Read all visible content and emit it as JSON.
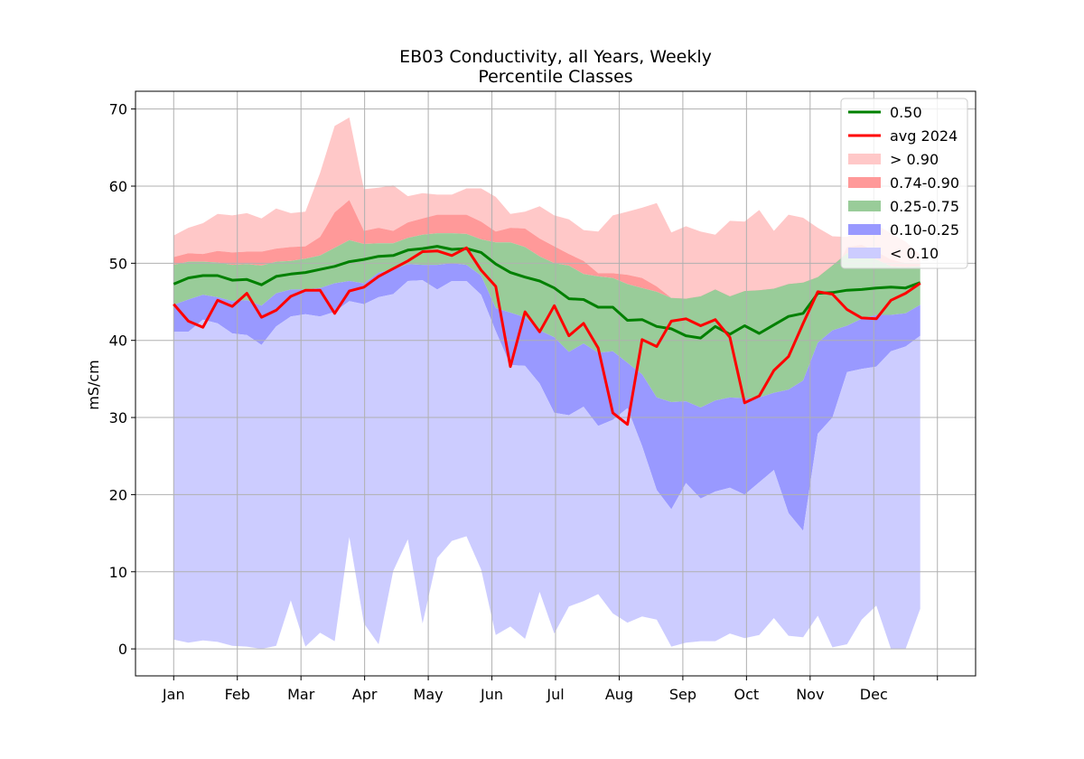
{
  "chart_data": {
    "type": "area",
    "title": "EB03 Conductivity, all Years, Weekly",
    "subtitle": "Percentile Classes",
    "xlabel": "",
    "ylabel": "mS/cm",
    "ylim": [
      -3.5,
      72.3
    ],
    "yticks": [
      0,
      10,
      20,
      30,
      40,
      50,
      60,
      70
    ],
    "xlim": [
      -0.6,
      12.6
    ],
    "x_tick_labels": [
      "Jan",
      "Feb",
      "Mar",
      "Apr",
      "May",
      "Jun",
      "Jul",
      "Aug",
      "Sep",
      "Oct",
      "Nov",
      "Dec",
      ""
    ],
    "grid": true,
    "legend_position": "top-right",
    "colors": {
      "median": "#008000",
      "avg_2024": "#ff0000",
      "above_90": "#ffc8c8",
      "p74_90": "#ff9999",
      "p25_75": "#99cc99",
      "p10_25": "#9999ff",
      "below_10": "#ccccff"
    },
    "legend": [
      {
        "label": "0.50",
        "kind": "line",
        "color_key": "median"
      },
      {
        "label": "avg 2024",
        "kind": "line",
        "color_key": "avg_2024"
      },
      {
        "label": "> 0.90",
        "kind": "patch",
        "color_key": "above_90"
      },
      {
        "label": "0.74-0.90",
        "kind": "patch",
        "color_key": "p74_90"
      },
      {
        "label": "0.25-0.75",
        "kind": "patch",
        "color_key": "p25_75"
      },
      {
        "label": "0.10-0.25",
        "kind": "patch",
        "color_key": "p10_25"
      },
      {
        "label": "< 0.10",
        "kind": "patch",
        "color_key": "below_10"
      }
    ],
    "weeks_x": [
      0,
      0.23,
      0.46,
      0.69,
      0.92,
      1.15,
      1.38,
      1.61,
      1.84,
      2.07,
      2.3,
      2.53,
      2.76,
      2.99,
      3.22,
      3.45,
      3.68,
      3.91,
      4.14,
      4.37,
      4.6,
      4.83,
      5.06,
      5.29,
      5.52,
      5.75,
      5.98,
      6.21,
      6.44,
      6.67,
      6.9,
      7.13,
      7.36,
      7.59,
      7.82,
      8.05,
      8.28,
      8.51,
      8.74,
      8.97,
      9.2,
      9.43,
      9.66,
      9.89,
      10.12,
      10.35,
      10.58,
      10.81,
      11.04,
      11.27,
      11.5,
      11.73
    ],
    "series": [
      {
        "name": "min",
        "values": [
          1.2,
          0.8,
          1.1,
          0.9,
          0.4,
          0.3,
          0.0,
          0.4,
          6.3,
          0.3,
          2.1,
          1.0,
          14.5,
          3.3,
          0.6,
          10.1,
          14.2,
          3.3,
          11.8,
          14.0,
          14.6,
          10.3,
          1.8,
          2.9,
          1.3,
          7.4,
          2.0,
          5.5,
          6.2,
          7.1,
          4.6,
          3.4,
          4.2,
          3.8,
          0.3,
          0.8,
          1.0,
          1.0,
          2.0,
          1.4,
          1.8,
          4.0,
          1.7,
          1.5,
          4.3,
          0.2,
          0.6,
          3.8,
          5.6,
          0.0,
          0.0,
          5.2
        ]
      },
      {
        "name": "p10",
        "values": [
          41.1,
          41.1,
          42.7,
          42.2,
          40.9,
          40.7,
          39.4,
          41.8,
          43.1,
          43.4,
          43.1,
          43.7,
          45.1,
          44.7,
          45.6,
          46.0,
          47.7,
          47.8,
          46.6,
          47.7,
          47.7,
          45.9,
          41.2,
          36.8,
          36.7,
          34.4,
          30.6,
          30.3,
          31.4,
          28.9,
          29.7,
          31.2,
          26.3,
          20.6,
          18.1,
          21.5,
          19.5,
          20.4,
          20.9,
          20.0,
          21.6,
          23.2,
          17.6,
          15.3,
          27.9,
          30.0,
          35.9,
          36.3,
          36.6,
          38.6,
          39.2,
          40.6
        ]
      },
      {
        "name": "p25",
        "values": [
          44.6,
          45.3,
          45.9,
          45.6,
          45.1,
          45.2,
          44.5,
          46.1,
          46.6,
          46.6,
          46.8,
          47.4,
          47.7,
          47.4,
          48.8,
          49.2,
          49.9,
          49.8,
          49.8,
          50.0,
          49.8,
          48.4,
          44.2,
          43.6,
          43.0,
          41.3,
          40.4,
          38.5,
          39.6,
          38.4,
          38.6,
          37.1,
          35.6,
          32.6,
          32.0,
          32.1,
          31.3,
          32.2,
          32.6,
          32.5,
          32.6,
          33.2,
          33.6,
          34.8,
          39.7,
          41.3,
          41.9,
          42.8,
          43.3,
          43.3,
          43.5,
          44.6
        ]
      },
      {
        "name": "p75",
        "values": [
          49.8,
          50.2,
          50.2,
          50.1,
          49.8,
          49.9,
          49.7,
          50.2,
          50.3,
          50.6,
          51.0,
          52.0,
          53.0,
          52.5,
          52.6,
          52.6,
          53.3,
          53.7,
          53.9,
          53.9,
          53.8,
          53.1,
          52.7,
          52.7,
          52.1,
          50.9,
          50.0,
          49.7,
          48.6,
          48.3,
          48.1,
          47.3,
          46.8,
          46.3,
          45.5,
          45.4,
          45.7,
          46.6,
          45.7,
          46.4,
          46.5,
          46.7,
          47.3,
          47.5,
          48.2,
          49.7,
          51.3,
          51.6,
          50.5,
          49.6,
          49.5,
          49.6
        ]
      },
      {
        "name": "p90",
        "values": [
          50.8,
          51.3,
          51.2,
          51.6,
          51.4,
          51.5,
          51.5,
          51.9,
          52.1,
          52.2,
          53.4,
          56.6,
          58.2,
          54.2,
          54.6,
          54.2,
          55.3,
          55.8,
          56.3,
          56.3,
          56.3,
          55.4,
          54.1,
          54.6,
          54.5,
          53.2,
          52.2,
          51.2,
          50.3,
          48.7,
          48.7,
          48.5,
          48.1,
          47.0,
          45.5,
          45.1,
          45.1,
          44.9,
          45.4,
          45.4,
          45.5,
          45.6,
          46.5,
          47.2,
          47.7,
          48.4,
          52.1,
          52.4,
          51.5,
          50.5,
          50.0,
          50.0
        ]
      },
      {
        "name": "max",
        "values": [
          53.6,
          54.6,
          55.2,
          56.4,
          56.2,
          56.5,
          55.8,
          57.1,
          56.5,
          56.7,
          61.7,
          67.8,
          68.9,
          59.6,
          59.8,
          60.1,
          58.7,
          59.1,
          58.9,
          58.9,
          59.7,
          59.7,
          58.6,
          56.4,
          56.7,
          57.4,
          56.2,
          55.7,
          54.3,
          54.1,
          56.2,
          56.7,
          57.2,
          57.8,
          54.0,
          54.8,
          54.1,
          53.7,
          55.5,
          55.4,
          56.9,
          54.2,
          56.3,
          55.9,
          54.6,
          53.5,
          53.4,
          54.4,
          55.0,
          53.9,
          52.8,
          51.1
        ]
      },
      {
        "name": "0.50",
        "values": [
          47.3,
          48.1,
          48.4,
          48.4,
          47.8,
          47.9,
          47.2,
          48.3,
          48.6,
          48.8,
          49.2,
          49.6,
          50.2,
          50.5,
          50.9,
          51.0,
          51.7,
          51.9,
          52.2,
          51.8,
          51.9,
          51.4,
          49.9,
          48.8,
          48.2,
          47.7,
          46.8,
          45.4,
          45.3,
          44.3,
          44.3,
          42.6,
          42.7,
          41.8,
          41.5,
          40.6,
          40.3,
          41.8,
          40.8,
          41.9,
          40.9,
          42.0,
          43.1,
          43.5,
          46.1,
          46.2,
          46.5,
          46.6,
          46.8,
          46.9,
          46.8,
          47.5
        ]
      },
      {
        "name": "avg 2024",
        "values": [
          44.7,
          42.5,
          41.7,
          45.2,
          44.4,
          46.1,
          43.0,
          43.9,
          45.7,
          46.5,
          46.5,
          43.5,
          46.4,
          46.9,
          48.3,
          49.3,
          50.3,
          51.5,
          51.6,
          51.0,
          52.0,
          49.1,
          47.0,
          36.6,
          43.7,
          41.1,
          44.5,
          40.6,
          42.2,
          39.0,
          30.6,
          29.1,
          40.1,
          39.2,
          42.5,
          42.8,
          41.9,
          42.7,
          40.4,
          31.9,
          32.8,
          36.1,
          37.9,
          42.2,
          46.3,
          46.0,
          44.0,
          42.9,
          42.8,
          45.2,
          46.1,
          47.4
        ]
      }
    ]
  }
}
